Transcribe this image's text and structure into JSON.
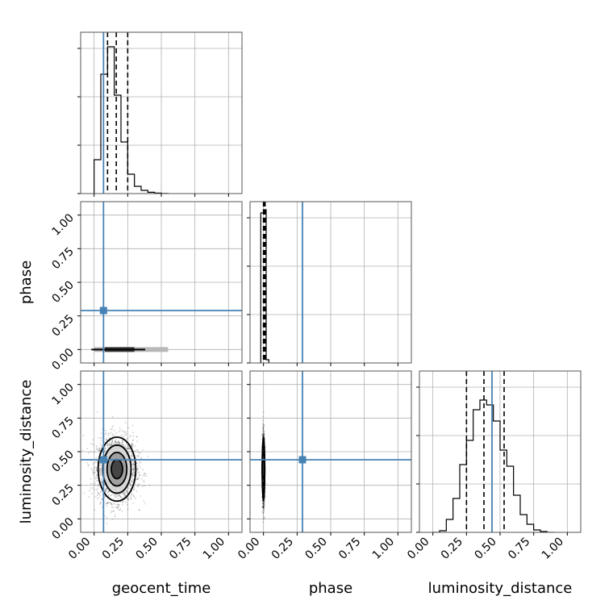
{
  "chart_data": {
    "type": "corner",
    "parameters": [
      "geocent_time",
      "phase",
      "luminosity_distance"
    ],
    "truths": {
      "geocent_time": 0.07,
      "phase": 0.29,
      "luminosity_distance": 0.44
    },
    "truth_color": "#4682b4",
    "axis_range": [
      -0.1,
      1.1
    ],
    "ticks": [
      0.0,
      0.25,
      0.5,
      0.75,
      1.0
    ],
    "tick_labels": [
      "0.00",
      "0.25",
      "0.50",
      "0.75",
      "1.00"
    ],
    "xlabels": [
      "geocent_time",
      "phase",
      "luminosity_distance"
    ],
    "ylabels": [
      "",
      "phase",
      "luminosity_distance"
    ],
    "grid": true,
    "marginals": {
      "geocent_time": {
        "bin_edges": [
          0.0,
          0.05,
          0.1,
          0.15,
          0.2,
          0.25,
          0.3,
          0.35,
          0.4,
          0.45,
          0.5,
          0.55
        ],
        "counts": [
          0.21,
          0.74,
          0.91,
          0.61,
          0.32,
          0.12,
          0.045,
          0.02,
          0.008,
          0.003,
          0.001
        ],
        "quantiles": [
          0.1,
          0.165,
          0.25
        ]
      },
      "phase": {
        "bin_edges": [
          -0.02,
          0.0,
          0.02,
          0.04
        ],
        "counts": [
          0.93,
          0.95,
          0.02
        ],
        "quantiles": [
          0.0,
          0.005,
          0.012
        ]
      },
      "luminosity_distance": {
        "bin_edges": [
          0.0,
          0.05,
          0.1,
          0.15,
          0.2,
          0.25,
          0.3,
          0.35,
          0.4,
          0.45,
          0.5,
          0.55,
          0.6,
          0.65,
          0.7,
          0.75,
          0.8,
          0.85,
          0.9
        ],
        "counts": [
          0.0,
          0.01,
          0.08,
          0.21,
          0.42,
          0.57,
          0.76,
          0.82,
          0.79,
          0.69,
          0.51,
          0.41,
          0.23,
          0.11,
          0.05,
          0.015,
          0.005,
          0.0
        ],
        "quantiles": [
          0.25,
          0.38,
          0.53
        ]
      }
    },
    "joint": {
      "phase_vs_geocent_time": {
        "center": [
          0.16,
          0.0
        ],
        "spread": [
          0.07,
          0.004
        ]
      },
      "luminosity_distance_vs_geocent_time": {
        "center": [
          0.17,
          0.37
        ],
        "spread": [
          0.07,
          0.14
        ]
      },
      "luminosity_distance_vs_phase": {
        "center": [
          0.0,
          0.37
        ],
        "spread": [
          0.004,
          0.14
        ]
      }
    }
  }
}
